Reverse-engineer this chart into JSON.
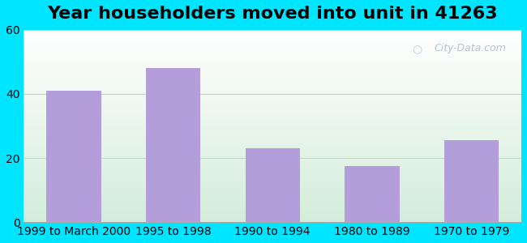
{
  "title": "Year householders moved into unit in 41263",
  "categories": [
    "1999 to March 2000",
    "1995 to 1998",
    "1990 to 1994",
    "1980 to 1989",
    "1970 to 1979"
  ],
  "values": [
    41,
    48,
    23,
    17.5,
    25.5
  ],
  "bar_color": "#b39ddb",
  "background_outer": "#00e5ff",
  "background_inner_top": "#ffffff",
  "background_inner_bottom": "#d4edda",
  "ylim": [
    0,
    60
  ],
  "yticks": [
    0,
    20,
    40,
    60
  ],
  "title_fontsize": 16,
  "tick_fontsize": 10,
  "watermark": "City-Data.com"
}
